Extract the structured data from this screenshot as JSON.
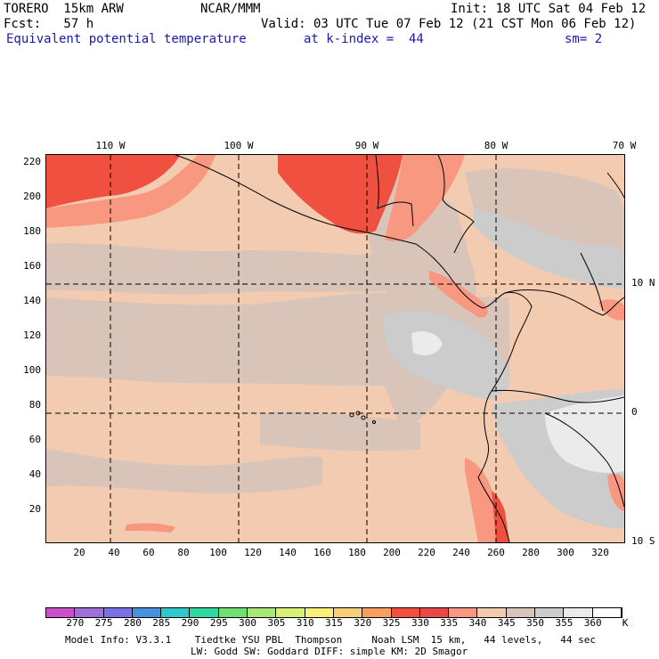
{
  "header": {
    "model": "TORERO  15km ARW",
    "center": "NCAR/MMM",
    "init": "Init: 18 UTC Sat 04 Feb 12",
    "forecast": "Fcst:   57 h",
    "valid": "Valid: 03 UTC Tue 07 Feb 12 (21 CST Mon 06 Feb 12)",
    "field": "Equivalent potential temperature",
    "level": "at k-index =  44",
    "smooth": "sm= 2"
  },
  "top_axis": [
    "110 W",
    "100 W",
    "90 W",
    "80 W",
    "70 W"
  ],
  "right_axis": [
    "10 N",
    "0",
    "10 S"
  ],
  "y_axis": [
    "220",
    "200",
    "180",
    "160",
    "140",
    "120",
    "100",
    "80",
    "60",
    "40",
    "20"
  ],
  "x_axis": [
    "20",
    "40",
    "60",
    "80",
    "100",
    "120",
    "140",
    "160",
    "180",
    "200",
    "220",
    "240",
    "260",
    "280",
    "300",
    "320"
  ],
  "colorbar": {
    "labels": [
      "270",
      "275",
      "280",
      "285",
      "290",
      "295",
      "300",
      "305",
      "310",
      "315",
      "320",
      "325",
      "330",
      "335",
      "340",
      "345",
      "350",
      "355",
      "360"
    ],
    "unit": "K",
    "colors": [
      "#c850c8",
      "#a070d8",
      "#7a70e8",
      "#4a90e0",
      "#30c8c8",
      "#30d8a0",
      "#70e070",
      "#a8e878",
      "#d8f078",
      "#f8f078",
      "#f8d078",
      "#f8a060",
      "#f05040",
      "#e84848",
      "#f89880",
      "#f3cbb0",
      "#d8c4b8",
      "#cccccc",
      "#ebebeb",
      "#ffffff"
    ]
  },
  "footer": {
    "line1": "Model Info: V3.3.1    Tiedtke YSU PBL  Thompson     Noah LSM  15 km,   44 levels,   44 sec",
    "line2": "LW: Godd SW: Goddard DIFF: simple KM: 2D Smagor"
  }
}
